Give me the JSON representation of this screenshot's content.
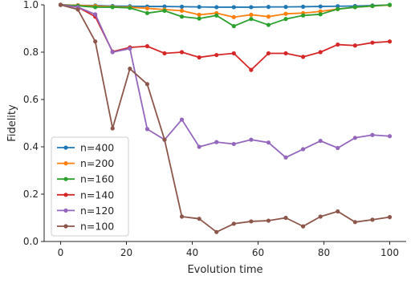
{
  "chart_data": {
    "type": "line",
    "title": "",
    "xlabel": "Evolution time",
    "ylabel": "Fidelity",
    "xlim": [
      -5,
      105
    ],
    "ylim": [
      0.0,
      1.0
    ],
    "x_ticks": [
      0,
      20,
      40,
      60,
      80,
      100
    ],
    "y_ticks": [
      0.0,
      0.2,
      0.4,
      0.6,
      0.8,
      1.0
    ],
    "x_tick_labels": [
      "0",
      "20",
      "40",
      "60",
      "80",
      "100"
    ],
    "y_tick_labels": [
      "0.0",
      "0.2",
      "0.4",
      "0.6",
      "0.8",
      "1.0"
    ],
    "grid": false,
    "legend_position": "lower-left",
    "x": [
      0,
      5.26,
      10.53,
      15.79,
      21.05,
      26.32,
      31.58,
      36.84,
      42.11,
      47.37,
      52.63,
      57.89,
      63.16,
      68.42,
      73.68,
      78.95,
      84.21,
      89.47,
      94.74,
      100
    ],
    "series": [
      {
        "name": "n=400",
        "color": "#1f77b4",
        "values": [
          1.0,
          0.998,
          0.997,
          0.995,
          0.994,
          0.993,
          0.993,
          0.992,
          0.991,
          0.99,
          0.99,
          0.99,
          0.991,
          0.991,
          0.992,
          0.993,
          0.994,
          0.995,
          0.997,
          0.999
        ]
      },
      {
        "name": "n=200",
        "color": "#ff7f0e",
        "values": [
          1.0,
          0.998,
          0.995,
          0.992,
          0.99,
          0.985,
          0.98,
          0.975,
          0.958,
          0.965,
          0.948,
          0.958,
          0.95,
          0.962,
          0.965,
          0.972,
          0.982,
          0.99,
          0.995,
          0.999
        ]
      },
      {
        "name": "n=160",
        "color": "#2ca02c",
        "values": [
          1.0,
          0.996,
          0.99,
          0.99,
          0.987,
          0.965,
          0.975,
          0.95,
          0.942,
          0.955,
          0.91,
          0.94,
          0.915,
          0.94,
          0.955,
          0.96,
          0.982,
          0.99,
          0.995,
          1.0
        ]
      },
      {
        "name": "n=140",
        "color": "#d62728",
        "values": [
          1.0,
          0.99,
          0.95,
          0.802,
          0.82,
          0.825,
          0.795,
          0.8,
          0.778,
          0.788,
          0.795,
          0.725,
          0.795,
          0.795,
          0.78,
          0.8,
          0.832,
          0.828,
          0.84,
          0.845
        ]
      },
      {
        "name": "n=120",
        "color": "#9467bd",
        "values": [
          1.0,
          0.99,
          0.96,
          0.8,
          0.815,
          0.475,
          0.43,
          0.515,
          0.4,
          0.42,
          0.412,
          0.43,
          0.418,
          0.355,
          0.39,
          0.425,
          0.395,
          0.438,
          0.45,
          0.445
        ]
      },
      {
        "name": "n=100",
        "color": "#8c564b",
        "values": [
          1.0,
          0.98,
          0.845,
          0.478,
          0.73,
          0.665,
          0.43,
          0.105,
          0.096,
          0.04,
          0.075,
          0.085,
          0.088,
          0.1,
          0.064,
          0.105,
          0.127,
          0.082,
          0.092,
          0.103
        ]
      }
    ]
  }
}
